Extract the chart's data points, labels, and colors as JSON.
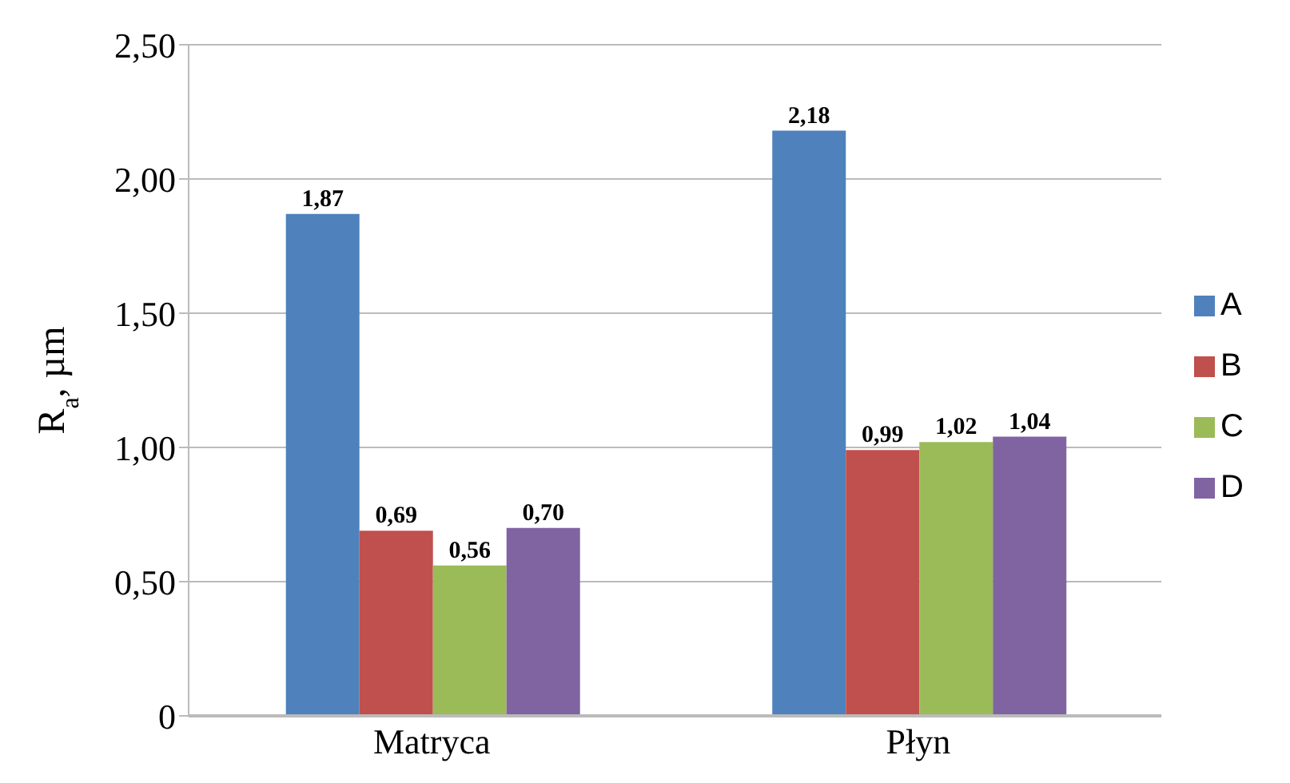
{
  "chart_data": {
    "type": "bar",
    "ylabel": "R$_{a}$, µm",
    "categories": [
      "Matryca",
      "Płyn"
    ],
    "series": [
      {
        "name": "A",
        "color": "#4f81bd",
        "values": [
          1.87,
          2.18
        ],
        "value_labels": [
          "1,87",
          "2,18"
        ]
      },
      {
        "name": "B",
        "color": "#c0504d",
        "values": [
          0.69,
          0.99
        ],
        "value_labels": [
          "0,69",
          "0,99"
        ]
      },
      {
        "name": "C",
        "color": "#9bbb59",
        "values": [
          0.56,
          1.02
        ],
        "value_labels": [
          "0,56",
          "1,02"
        ]
      },
      {
        "name": "D",
        "color": "#8064a2",
        "values": [
          0.7,
          1.04
        ],
        "value_labels": [
          "0,70",
          "1,04"
        ]
      }
    ],
    "ylim": [
      0,
      2.5
    ],
    "yticks": [
      {
        "value": 0,
        "label": "0"
      },
      {
        "value": 0.5,
        "label": "0,50"
      },
      {
        "value": 1,
        "label": "1,00"
      },
      {
        "value": 1.5,
        "label": "1,50"
      },
      {
        "value": 2,
        "label": "2,00"
      },
      {
        "value": 2.5,
        "label": "2,50"
      }
    ],
    "grid": "y",
    "legend": "right"
  }
}
